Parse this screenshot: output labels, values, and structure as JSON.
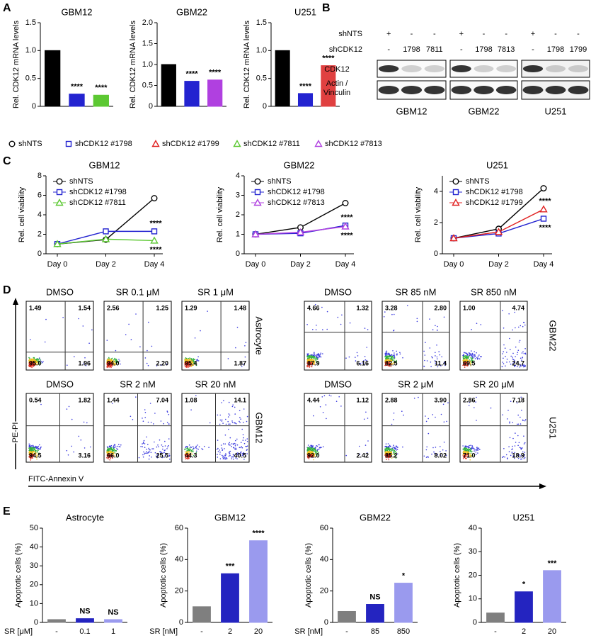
{
  "panel_labels": [
    "A",
    "B",
    "C",
    "D",
    "E"
  ],
  "shared_legend": [
    {
      "name": "shNTS",
      "color": "#000000",
      "marker": "circle"
    },
    {
      "name": "shCDK12 #1798",
      "color": "#2323d0",
      "marker": "square"
    },
    {
      "name": "shCDK12 #1799",
      "color": "#e02020",
      "marker": "triangle"
    },
    {
      "name": "shCDK12 #7811",
      "color": "#5cc832",
      "marker": "triangle"
    },
    {
      "name": "shCDK12 #7813",
      "color": "#b040e0",
      "marker": "triangle"
    }
  ],
  "chart_data": [
    {
      "type": "bar",
      "title": "GBM12",
      "ylabel": "Rel. CDK12 mRNA levels",
      "categories": [
        null,
        null,
        null
      ],
      "values": [
        1.0,
        0.22,
        0.2
      ],
      "colors": [
        "#000000",
        "#2323d0",
        "#5cc832"
      ],
      "annotations": [
        null,
        "****",
        "****"
      ],
      "ylim": [
        0,
        1.5
      ],
      "yticks": [
        0,
        0.5,
        {
          "value": 1,
          "label": "1.0"
        },
        1.5
      ]
    },
    {
      "type": "bar",
      "title": "GBM22",
      "ylabel": "Rel. CDK12 mRNA levels",
      "categories": [
        null,
        null,
        null
      ],
      "values": [
        1.0,
        0.6,
        0.63
      ],
      "colors": [
        "#000000",
        "#2323d0",
        "#b040e0"
      ],
      "annotations": [
        null,
        "****",
        "****"
      ],
      "ylim": [
        0,
        2.0
      ],
      "yticks": [
        0,
        0.5,
        {
          "value": 1,
          "label": "1.0"
        },
        1.5,
        {
          "value": 2,
          "label": "2.0"
        }
      ]
    },
    {
      "type": "bar",
      "title": "U251",
      "ylabel": "Rel. CDK12 mRNA levels",
      "categories": [
        null,
        null,
        null
      ],
      "values": [
        1.0,
        0.23,
        0.73
      ],
      "colors": [
        "#000000",
        "#2323d0",
        "#e04040"
      ],
      "annotations": [
        null,
        "****",
        "****"
      ],
      "ylim": [
        0,
        1.5
      ],
      "yticks": [
        0,
        0.5,
        {
          "value": 1,
          "label": "1.0"
        },
        1.5
      ]
    },
    {
      "type": "line",
      "title": "GBM12",
      "ylabel": "Rel. cell viability",
      "categories": [
        "Day 0",
        "Day 2",
        "Day 4"
      ],
      "ylim": [
        0,
        8
      ],
      "yticks": [
        0,
        2,
        4,
        6,
        8
      ],
      "series": [
        {
          "name": "shNTS",
          "color": "#000000",
          "marker": "circle",
          "values": [
            1.0,
            1.45,
            5.7
          ]
        },
        {
          "name": "shCDK12 #1798",
          "color": "#2323d0",
          "marker": "square",
          "values": [
            1.0,
            2.3,
            2.3
          ],
          "annotation": "****"
        },
        {
          "name": "shCDK12 #7811",
          "color": "#5cc832",
          "marker": "triangle",
          "values": [
            1.0,
            1.5,
            1.35
          ],
          "annotation": "****"
        }
      ]
    },
    {
      "type": "line",
      "title": "GBM22",
      "ylabel": "Rel. cell viability",
      "categories": [
        "Day 0",
        "Day 2",
        "Day 4"
      ],
      "ylim": [
        0,
        4
      ],
      "yticks": [
        0,
        1,
        2,
        3,
        4
      ],
      "series": [
        {
          "name": "shNTS",
          "color": "#000000",
          "marker": "circle",
          "values": [
            1.0,
            1.35,
            2.6
          ]
        },
        {
          "name": "shCDK12 #1798",
          "color": "#2323d0",
          "marker": "square",
          "values": [
            1.0,
            1.05,
            1.45
          ],
          "annotation": "****"
        },
        {
          "name": "shCDK12 #7813",
          "color": "#b040e0",
          "marker": "triangle",
          "values": [
            1.0,
            1.1,
            1.4
          ],
          "annotation": "****"
        }
      ]
    },
    {
      "type": "line",
      "title": "U251",
      "ylabel": "Rel. cell viability",
      "categories": [
        "Day 0",
        "Day 2",
        "Day 4"
      ],
      "ylim": [
        0,
        5
      ],
      "yticks": [
        0,
        2,
        4
      ],
      "series": [
        {
          "name": "shNTS",
          "color": "#000000",
          "marker": "circle",
          "values": [
            1.0,
            1.6,
            4.2
          ]
        },
        {
          "name": "shCDK12 #1798",
          "color": "#2323d0",
          "marker": "square",
          "values": [
            1.0,
            1.3,
            2.25
          ],
          "annotation": "****"
        },
        {
          "name": "shCDK12 #1799",
          "color": "#e02020",
          "marker": "triangle",
          "values": [
            1.0,
            1.4,
            2.85
          ],
          "annotation": "****"
        }
      ]
    },
    {
      "type": "bar",
      "title": "Astrocyte",
      "ylabel": "Apoptotic cells (%)",
      "xlabel": "SR [μM]",
      "categories": [
        "-",
        "0.1",
        "1"
      ],
      "values": [
        1.5,
        2,
        1.5
      ],
      "colors": [
        "#7f7f7f",
        "#2424c0",
        "#9a9aee"
      ],
      "annotations": [
        null,
        "NS",
        "NS"
      ],
      "ylim": [
        0,
        50
      ],
      "yticks": [
        0,
        10,
        20,
        30,
        40,
        50
      ]
    },
    {
      "type": "bar",
      "title": "GBM12",
      "ylabel": "Apoptotic cells (%)",
      "xlabel": "SR [nM]",
      "categories": [
        "-",
        "2",
        "20"
      ],
      "values": [
        10,
        31,
        52
      ],
      "colors": [
        "#7f7f7f",
        "#2424c0",
        "#9a9aee"
      ],
      "annotations": [
        null,
        "***",
        "****"
      ],
      "ylim": [
        0,
        60
      ],
      "yticks": [
        0,
        20,
        40,
        60
      ]
    },
    {
      "type": "bar",
      "title": "GBM22",
      "ylabel": "Apoptotic cells (%)",
      "xlabel": "SR [nM]",
      "categories": [
        "-",
        "85",
        "850"
      ],
      "values": [
        7,
        11.5,
        25
      ],
      "colors": [
        "#7f7f7f",
        "#2424c0",
        "#9a9aee"
      ],
      "annotations": [
        null,
        "NS",
        "*"
      ],
      "ylim": [
        0,
        60
      ],
      "yticks": [
        0,
        20,
        40,
        60
      ]
    },
    {
      "type": "bar",
      "title": "U251",
      "ylabel": "Apoptotic cells (%)",
      "categories": [
        "-",
        "2",
        "20"
      ],
      "values": [
        4,
        13,
        22
      ],
      "colors": [
        "#7f7f7f",
        "#2424c0",
        "#9a9aee"
      ],
      "annotations": [
        null,
        "*",
        "***"
      ],
      "ylim": [
        0,
        40
      ],
      "yticks": [
        0,
        10,
        20,
        30,
        40
      ]
    }
  ],
  "blot": {
    "row_labels": [
      "shNTS",
      "shCDK12"
    ],
    "band_labels": [
      "CDK12",
      "Actin /",
      "Vinculin"
    ],
    "groups": [
      {
        "name": "GBM12",
        "rows": [
          [
            "+",
            "-",
            "-"
          ],
          [
            "-",
            "1798",
            "7811"
          ]
        ]
      },
      {
        "name": "GBM22",
        "rows": [
          [
            "+",
            "-",
            "-"
          ],
          [
            "-",
            "1798",
            "7813"
          ]
        ]
      },
      {
        "name": "U251",
        "rows": [
          [
            "+",
            "-",
            "-"
          ],
          [
            "-",
            "1798",
            "1799"
          ]
        ]
      }
    ]
  },
  "flow": {
    "y_label": "PE-PI",
    "x_label": "FITC-Annexin V",
    "groups": [
      {
        "row_label": "Astrocyte",
        "plots": [
          {
            "title": "DMSO",
            "quadrants": [
              "1.49",
              "1.54",
              "95.0",
              "1.96"
            ]
          },
          {
            "title": "SR 0.1 μM",
            "quadrants": [
              "2.56",
              "1.25",
              "94.0",
              "2.20"
            ]
          },
          {
            "title": "SR 1 μM",
            "quadrants": [
              "1.29",
              "1.48",
              "95.4",
              "1.87"
            ]
          }
        ]
      },
      {
        "row_label": "GBM12",
        "plots": [
          {
            "title": "DMSO",
            "quadrants": [
              "0.54",
              "1.82",
              "94.5",
              "3.16"
            ]
          },
          {
            "title": "SR 2 nM",
            "quadrants": [
              "1.44",
              "7.04",
              "66.0",
              "25.5"
            ]
          },
          {
            "title": "SR 20 nM",
            "quadrants": [
              "1.08",
              "14.1",
              "44.3",
              "40.5"
            ]
          }
        ]
      },
      {
        "row_label": "GBM22",
        "plots": [
          {
            "title": "DMSO",
            "quadrants": [
              "4.66",
              "1.32",
              "87.9",
              "6.16"
            ]
          },
          {
            "title": "SR 85 nM",
            "quadrants": [
              "3.28",
              "2.80",
              "82.5",
              "11.4"
            ]
          },
          {
            "title": "SR 850 nM",
            "quadrants": [
              "1.00",
              "4.74",
              "69.5",
              "24.7"
            ]
          }
        ]
      },
      {
        "row_label": "U251",
        "plots": [
          {
            "title": "DMSO",
            "quadrants": [
              "4.44",
              "1.12",
              "92.0",
              "2.42"
            ]
          },
          {
            "title": "SR 2 μM",
            "quadrants": [
              "2.88",
              "3.90",
              "85.2",
              "8.02"
            ]
          },
          {
            "title": "SR 20 μM",
            "quadrants": [
              "2.86",
              "7.18",
              "71.0",
              "18.9"
            ]
          }
        ]
      }
    ]
  }
}
